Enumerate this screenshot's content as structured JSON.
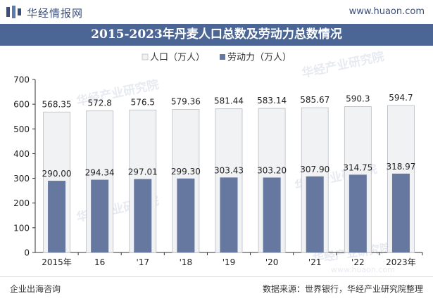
{
  "header": {
    "brand": "华经情报网",
    "url": "www.huaon.com"
  },
  "title": "2015-2023年丹麦人口总数及劳动力总数情况",
  "footer": {
    "left": "企业出海咨询",
    "right": "数据来源：世界银行，华经产业研究院整理"
  },
  "watermark": "华经产业研究院",
  "watermark_url": "www.huaon.com",
  "colors": {
    "header_bg": "#4b6695",
    "population": "#f1f2f4",
    "population_border": "#b8bcc4",
    "labor": "#66789f"
  },
  "chart_data": {
    "type": "bar",
    "title": "2015-2023年丹麦人口总数及劳动力总数情况",
    "categories": [
      "2015年",
      "16",
      "'17",
      "'18",
      "'19",
      "'20",
      "'21",
      "'22",
      "2023年"
    ],
    "series": [
      {
        "name": "人口（万人）",
        "values": [
          568.35,
          572.8,
          576.5,
          579.36,
          581.44,
          583.14,
          585.67,
          590.3,
          594.7
        ],
        "labels": [
          "568.35",
          "572.8",
          "576.5",
          "579.36",
          "581.44",
          "583.14",
          "585.67",
          "590.3",
          "594.7"
        ]
      },
      {
        "name": "劳动力（万人）",
        "values": [
          290.0,
          294.34,
          297.01,
          299.3,
          303.43,
          303.2,
          307.9,
          314.75,
          318.97
        ],
        "labels": [
          "290.00",
          "294.34",
          "297.01",
          "299.30",
          "303.43",
          "303.20",
          "307.90",
          "314.75",
          "318.97"
        ]
      }
    ],
    "yticks": [
      "0",
      "100",
      "200",
      "300",
      "400",
      "500",
      "600",
      "700"
    ],
    "ylim": [
      0,
      700
    ],
    "legend": "top-center",
    "xlabel": "",
    "ylabel": ""
  }
}
